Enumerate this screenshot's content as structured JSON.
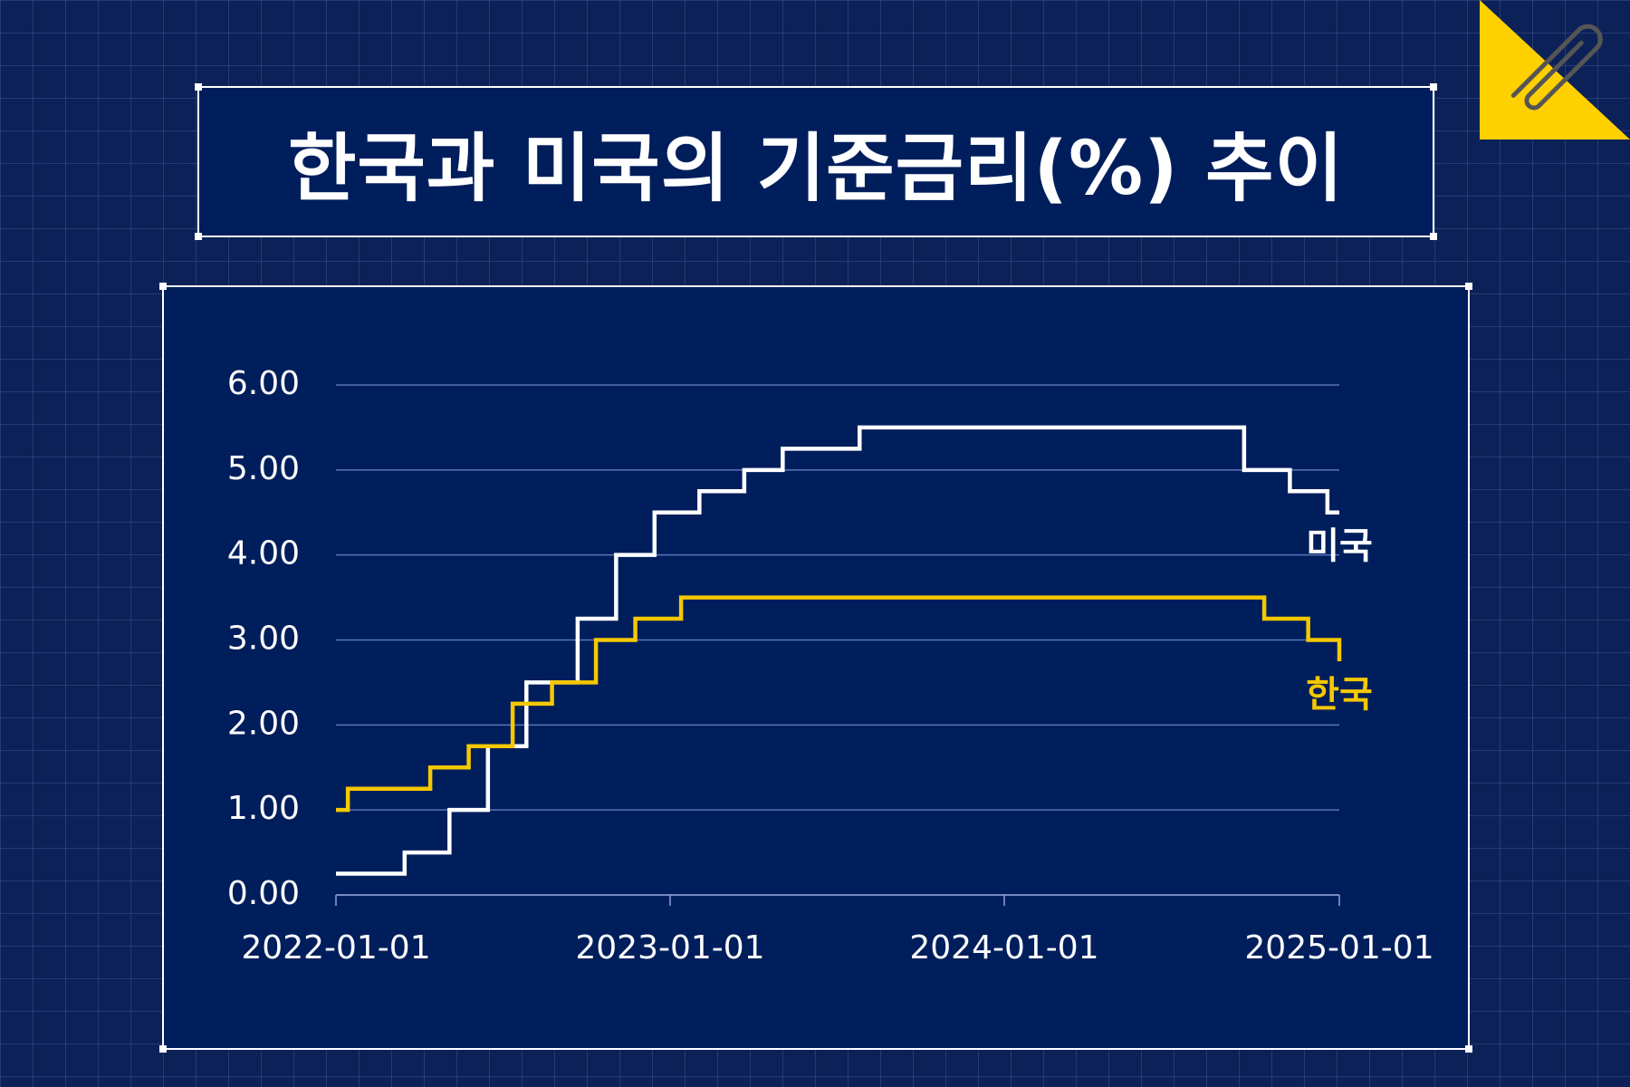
{
  "title": "한국과 미국의 기준금리(%) 추이",
  "colors": {
    "background": "#0c2157",
    "panel": "#001e5c",
    "us": "#ffffff",
    "korea": "#f5c800",
    "accent": "#ffd000"
  },
  "chart_data": {
    "type": "line",
    "step": true,
    "title": "한국과 미국의 기준금리(%) 추이",
    "ylim": [
      0,
      6
    ],
    "xlim": [
      "2022-01-01",
      "2025-01-01"
    ],
    "y_ticks": [
      "0.00",
      "1.00",
      "2.00",
      "3.00",
      "4.00",
      "5.00",
      "6.00"
    ],
    "x_ticks": [
      "2022-01-01",
      "2023-01-01",
      "2024-01-01",
      "2025-01-01"
    ],
    "grid": "horizontal",
    "series": [
      {
        "name": "미국",
        "color": "#ffffff",
        "points": [
          [
            "2022-01-01",
            0.25
          ],
          [
            "2022-03-17",
            0.5
          ],
          [
            "2022-05-05",
            1.0
          ],
          [
            "2022-06-16",
            1.75
          ],
          [
            "2022-07-28",
            2.5
          ],
          [
            "2022-09-22",
            3.25
          ],
          [
            "2022-11-03",
            4.0
          ],
          [
            "2022-12-15",
            4.5
          ],
          [
            "2023-02-02",
            4.75
          ],
          [
            "2023-03-23",
            5.0
          ],
          [
            "2023-05-04",
            5.25
          ],
          [
            "2023-07-27",
            5.5
          ],
          [
            "2024-09-19",
            5.0
          ],
          [
            "2024-11-08",
            4.75
          ],
          [
            "2024-12-19",
            4.5
          ],
          [
            "2025-01-01",
            4.5
          ]
        ]
      },
      {
        "name": "한국",
        "color": "#f5c800",
        "points": [
          [
            "2022-01-01",
            1.0
          ],
          [
            "2022-01-14",
            1.25
          ],
          [
            "2022-04-14",
            1.5
          ],
          [
            "2022-05-26",
            1.75
          ],
          [
            "2022-07-13",
            2.25
          ],
          [
            "2022-08-25",
            2.5
          ],
          [
            "2022-10-12",
            3.0
          ],
          [
            "2022-11-24",
            3.25
          ],
          [
            "2023-01-13",
            3.5
          ],
          [
            "2024-10-11",
            3.25
          ],
          [
            "2024-11-28",
            3.0
          ],
          [
            "2025-01-01",
            2.75
          ]
        ]
      }
    ]
  }
}
